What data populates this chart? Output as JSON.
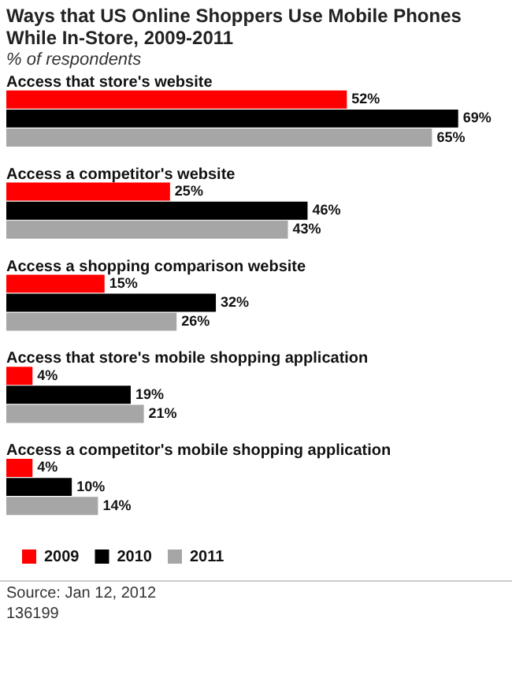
{
  "chart_data": {
    "type": "bar",
    "orientation": "horizontal",
    "title": "Ways that US Online Shoppers Use Mobile Phones While In-Store, 2009-2011",
    "subtitle": "% of respondents",
    "categories": [
      "Access that store's website",
      "Access a competitor's website",
      "Access a shopping comparison website",
      "Access that store's mobile shopping application",
      "Access a competitor's mobile shopping application"
    ],
    "series": [
      {
        "name": "2009",
        "color": "#ff0000",
        "values": [
          52,
          25,
          15,
          4,
          4
        ],
        "value_labels": [
          "52%",
          "25%",
          "15%",
          "4%",
          "4%"
        ]
      },
      {
        "name": "2010",
        "color": "#000000",
        "values": [
          69,
          46,
          32,
          19,
          10
        ],
        "value_labels": [
          "69%",
          "46%",
          "32%",
          "19%",
          "10%"
        ]
      },
      {
        "name": "2011",
        "color": "#a6a6a6",
        "values": [
          65,
          43,
          26,
          21,
          14
        ],
        "value_labels": [
          "65%",
          "43%",
          "26%",
          "21%",
          "14%"
        ]
      }
    ],
    "legend": "bottom",
    "annotations": [
      "Source: Jan 12, 2012",
      "136199"
    ]
  }
}
